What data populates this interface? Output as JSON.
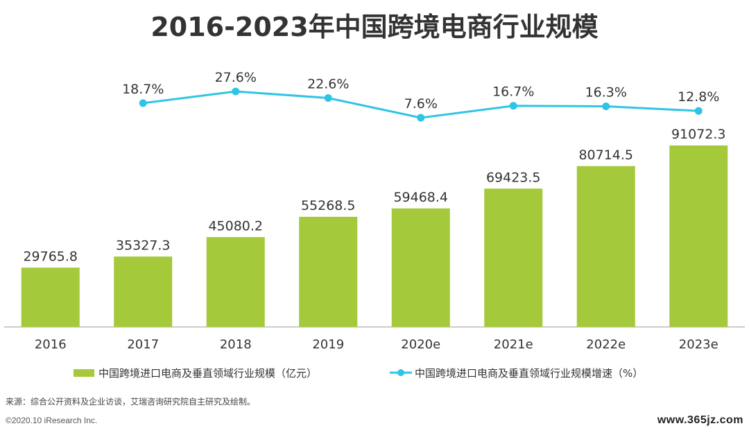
{
  "chart_data": {
    "type": "bar",
    "title": "2016-2023年中国跨境电商行业规模",
    "categories": [
      "2016",
      "2017",
      "2018",
      "2019",
      "2020e",
      "2021e",
      "2022e",
      "2023e"
    ],
    "series": [
      {
        "name": "中国跨境进口电商及垂直领域行业规模（亿元）",
        "type": "bar",
        "values": [
          29765.8,
          35327.3,
          45080.2,
          55268.5,
          59468.4,
          69423.5,
          80714.5,
          91072.3
        ],
        "labels": [
          "29765.8",
          "35327.3",
          "45080.2",
          "55268.5",
          "59468.4",
          "69423.5",
          "80714.5",
          "91072.3"
        ],
        "color": "#a4c93a"
      },
      {
        "name": "中国跨境进口电商及垂直领域行业规模增速（%）",
        "type": "line",
        "values": [
          null,
          18.7,
          27.6,
          22.6,
          7.6,
          16.7,
          16.3,
          12.8
        ],
        "labels": [
          "",
          "18.7%",
          "27.6%",
          "22.6%",
          "7.6%",
          "16.7%",
          "16.3%",
          "12.8%"
        ],
        "color": "#2ec4e6"
      }
    ],
    "legend_position": "bottom",
    "grid": false
  },
  "footer": {
    "source": "来源：综合公开资料及企业访谈，艾瑞咨询研究院自主研究及绘制。",
    "copyright": "©2020.10 iResearch Inc.",
    "watermark": "www.365jz.com"
  }
}
